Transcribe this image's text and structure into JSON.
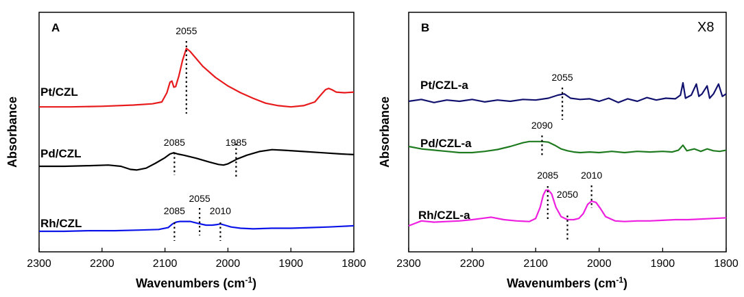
{
  "chart_data": [
    {
      "type": "line",
      "panel_label": "A",
      "xlabel": "Wavenumbers (cm",
      "xlabel_sup": "-1",
      "xlabel_tail": ")",
      "ylabel": "Absorbance",
      "xlim": [
        2300,
        1800
      ],
      "xticks": [
        "2300",
        "2200",
        "2100",
        "2000",
        "1900",
        "1800"
      ],
      "scale_label": "",
      "series": [
        {
          "name": "Pt/CZL",
          "color": "#e8191b",
          "x": [
            2300,
            2250,
            2200,
            2150,
            2120,
            2105,
            2097,
            2092,
            2089,
            2086,
            2083,
            2078,
            2072,
            2066,
            2060,
            2050,
            2040,
            2020,
            2000,
            1980,
            1960,
            1940,
            1920,
            1900,
            1880,
            1862,
            1852,
            1845,
            1840,
            1835,
            1828,
            1815,
            1800
          ],
          "y": [
            0.02,
            0.02,
            0.03,
            0.05,
            0.07,
            0.1,
            0.25,
            0.42,
            0.44,
            0.34,
            0.35,
            0.52,
            0.78,
            0.97,
            0.92,
            0.8,
            0.68,
            0.5,
            0.36,
            0.25,
            0.16,
            0.08,
            0.04,
            0.02,
            0.04,
            0.1,
            0.22,
            0.3,
            0.32,
            0.3,
            0.26,
            0.25,
            0.26
          ]
        },
        {
          "name": "Pd/CZL",
          "color": "#000000",
          "x": [
            2300,
            2260,
            2220,
            2190,
            2170,
            2155,
            2145,
            2130,
            2115,
            2100,
            2092,
            2086,
            2080,
            2070,
            2050,
            2030,
            2015,
            2007,
            2000,
            1985,
            1970,
            1950,
            1930,
            1910,
            1880,
            1850,
            1820,
            1800
          ],
          "y": [
            0.0,
            0.0,
            0.01,
            0.02,
            0.0,
            -0.05,
            -0.06,
            -0.03,
            0.05,
            0.14,
            0.2,
            0.22,
            0.2,
            0.18,
            0.13,
            0.07,
            0.03,
            0.02,
            0.04,
            0.12,
            0.18,
            0.24,
            0.27,
            0.26,
            0.24,
            0.22,
            0.2,
            0.19
          ]
        },
        {
          "name": "Rh/CZL",
          "color": "#0a14e8",
          "x": [
            2300,
            2260,
            2220,
            2180,
            2140,
            2110,
            2095,
            2088,
            2082,
            2076,
            2070,
            2060,
            2048,
            2035,
            2025,
            2017,
            2012,
            2005,
            1995,
            1980,
            1960,
            1930,
            1900,
            1870,
            1840,
            1820,
            1800
          ],
          "y": [
            0.0,
            0.0,
            0.01,
            0.01,
            0.02,
            0.03,
            0.06,
            0.12,
            0.15,
            0.16,
            0.16,
            0.16,
            0.13,
            0.1,
            0.1,
            0.11,
            0.12,
            0.1,
            0.07,
            0.05,
            0.04,
            0.05,
            0.05,
            0.06,
            0.07,
            0.08,
            0.09
          ]
        }
      ],
      "annotations": [
        {
          "text": "2055",
          "x": 2066,
          "row": "Pt/CZL"
        },
        {
          "text": "2085",
          "x": 2085,
          "row": "Pd/CZL"
        },
        {
          "text": "1985",
          "x": 1987,
          "row": "Pd/CZL"
        },
        {
          "text": "2085",
          "x": 2085,
          "row": "Rh/CZL"
        },
        {
          "text": "2055",
          "x": 2045,
          "row": "Rh/CZL"
        },
        {
          "text": "2010",
          "x": 2012,
          "row": "Rh/CZL"
        }
      ]
    },
    {
      "type": "line",
      "panel_label": "B",
      "xlabel": "Wavenumbers (cm",
      "xlabel_sup": "-1",
      "xlabel_tail": ")",
      "ylabel": "Absorbance",
      "xlim": [
        2300,
        1800
      ],
      "xticks": [
        "2300",
        "2200",
        "2100",
        "2000",
        "1900",
        "1800"
      ],
      "scale_label": "X8",
      "series": [
        {
          "name": "Pt/CZL-a",
          "color": "#10106e",
          "x": [
            2300,
            2280,
            2260,
            2240,
            2220,
            2200,
            2180,
            2160,
            2140,
            2120,
            2100,
            2080,
            2065,
            2055,
            2045,
            2030,
            2015,
            2000,
            1985,
            1970,
            1955,
            1940,
            1925,
            1910,
            1895,
            1880,
            1872,
            1868,
            1864,
            1855,
            1847,
            1843,
            1838,
            1830,
            1826,
            1820,
            1812,
            1806,
            1800
          ],
          "y": [
            0.0,
            0.03,
            -0.02,
            0.02,
            0.0,
            0.03,
            -0.01,
            0.02,
            0.0,
            0.03,
            0.02,
            0.05,
            0.1,
            0.12,
            0.05,
            0.03,
            0.04,
            0.0,
            0.05,
            -0.02,
            0.04,
            0.0,
            0.06,
            0.02,
            0.05,
            0.04,
            0.1,
            0.3,
            0.05,
            0.1,
            0.28,
            0.08,
            0.12,
            0.25,
            0.05,
            0.12,
            0.28,
            0.08,
            0.12
          ]
        },
        {
          "name": "Pd/CZL-a",
          "color": "#1e7a1e",
          "x": [
            2300,
            2280,
            2260,
            2240,
            2220,
            2200,
            2180,
            2160,
            2140,
            2120,
            2110,
            2100,
            2090,
            2080,
            2070,
            2060,
            2050,
            2040,
            2030,
            2015,
            2000,
            1980,
            1960,
            1940,
            1920,
            1900,
            1885,
            1875,
            1868,
            1862,
            1850,
            1840,
            1830,
            1820,
            1810,
            1800
          ],
          "y": [
            0.1,
            0.06,
            0.04,
            0.02,
            0.0,
            0.0,
            0.02,
            0.05,
            0.1,
            0.16,
            0.18,
            0.18,
            0.18,
            0.17,
            0.12,
            0.06,
            0.03,
            0.01,
            0.0,
            0.01,
            0.0,
            0.02,
            0.0,
            0.02,
            0.01,
            0.02,
            0.01,
            0.04,
            0.12,
            0.03,
            0.06,
            0.02,
            0.06,
            0.03,
            0.02,
            0.04
          ]
        },
        {
          "name": "Rh/CZL-a",
          "color": "#ee1ee0",
          "x": [
            2300,
            2290,
            2280,
            2260,
            2240,
            2220,
            2200,
            2185,
            2170,
            2150,
            2130,
            2110,
            2100,
            2093,
            2088,
            2084,
            2080,
            2075,
            2068,
            2060,
            2050,
            2040,
            2032,
            2025,
            2018,
            2012,
            2005,
            1998,
            1990,
            1975,
            1960,
            1940,
            1920,
            1900,
            1880,
            1860,
            1840,
            1820,
            1800
          ],
          "y": [
            0.0,
            0.04,
            0.08,
            0.06,
            0.07,
            0.08,
            0.1,
            0.12,
            0.14,
            0.1,
            0.08,
            0.07,
            0.12,
            0.3,
            0.5,
            0.58,
            0.58,
            0.52,
            0.3,
            0.15,
            0.1,
            0.1,
            0.12,
            0.2,
            0.35,
            0.4,
            0.38,
            0.28,
            0.15,
            0.08,
            0.07,
            0.08,
            0.08,
            0.09,
            0.1,
            0.1,
            0.11,
            0.12,
            0.13
          ]
        }
      ],
      "annotations": [
        {
          "text": "2055",
          "x": 2058,
          "row": "Pt/CZL-a"
        },
        {
          "text": "2090",
          "x": 2090,
          "row": "Pd/CZL-a"
        },
        {
          "text": "2085",
          "x": 2081,
          "row": "Rh/CZL-a"
        },
        {
          "text": "2050",
          "x": 2050,
          "row": "Rh/CZL-a"
        },
        {
          "text": "2010",
          "x": 2012,
          "row": "Rh/CZL-a"
        }
      ]
    }
  ]
}
